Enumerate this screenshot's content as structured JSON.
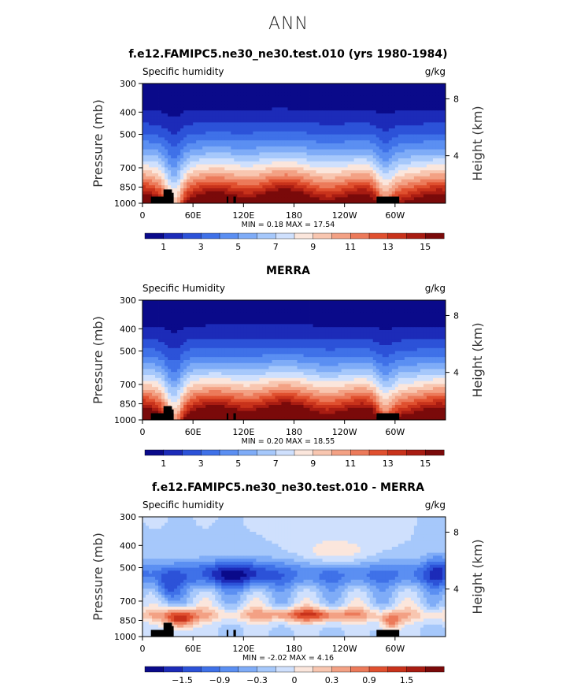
{
  "figure_title": "ANN",
  "chart_data": [
    {
      "type": "heatmap",
      "title": "f.e12.FAMIPC5.ne30_ne30.test.010 (yrs 1980-1984)",
      "variable_label": "Specific humidity",
      "units_label": "g/kg",
      "ylabel": "Pressure (mb)",
      "ylabel_right": "Height (km)",
      "x_ticks": [
        "0",
        "60E",
        "120E",
        "180",
        "120W",
        "60W"
      ],
      "y_ticks": [
        "300",
        "400",
        "500",
        "700",
        "850",
        "1000"
      ],
      "y_ticks_right": [
        "8",
        "4"
      ],
      "stats_label": "MIN =    0.18   MAX =   17.54",
      "min": 0.18,
      "max": 17.54,
      "colorbar": {
        "levels": [
          1,
          3,
          5,
          7,
          9,
          11,
          13,
          15
        ],
        "labels": [
          "1",
          "3",
          "5",
          "7",
          "9",
          "11",
          "13",
          "15"
        ],
        "colors": [
          "#0a0a8a",
          "#1c2bb8",
          "#2c52d8",
          "#3f71e8",
          "#5b8ff2",
          "#7facf7",
          "#a6c8fb",
          "#cfe0fd",
          "#fbe6dc",
          "#f8c6b0",
          "#f3a184",
          "#ec7a5a",
          "#e0502f",
          "#c8321b",
          "#a81c12",
          "#7a0a0a"
        ]
      }
    },
    {
      "type": "heatmap",
      "title": "MERRA",
      "variable_label": "Specific Humidity",
      "units_label": "g/kg",
      "ylabel": "Pressure (mb)",
      "ylabel_right": "Height (km)",
      "x_ticks": [
        "0",
        "60E",
        "120E",
        "180",
        "120W",
        "60W"
      ],
      "y_ticks": [
        "300",
        "400",
        "500",
        "700",
        "850",
        "1000"
      ],
      "y_ticks_right": [
        "8",
        "4"
      ],
      "stats_label": "MIN =    0.20   MAX =   18.55",
      "min": 0.2,
      "max": 18.55,
      "colorbar": {
        "levels": [
          1,
          3,
          5,
          7,
          9,
          11,
          13,
          15
        ],
        "labels": [
          "1",
          "3",
          "5",
          "7",
          "9",
          "11",
          "13",
          "15"
        ],
        "colors": [
          "#0a0a8a",
          "#1c2bb8",
          "#2c52d8",
          "#3f71e8",
          "#5b8ff2",
          "#7facf7",
          "#a6c8fb",
          "#cfe0fd",
          "#fbe6dc",
          "#f8c6b0",
          "#f3a184",
          "#ec7a5a",
          "#e0502f",
          "#c8321b",
          "#a81c12",
          "#7a0a0a"
        ]
      }
    },
    {
      "type": "heatmap",
      "title": "f.e12.FAMIPC5.ne30_ne30.test.010 - MERRA",
      "variable_label": "Specific humidity",
      "units_label": "g/kg",
      "ylabel": "Pressure (mb)",
      "ylabel_right": "Height (km)",
      "x_ticks": [
        "0",
        "60E",
        "120E",
        "180",
        "120W",
        "60W"
      ],
      "y_ticks": [
        "300",
        "400",
        "500",
        "700",
        "850",
        "1000"
      ],
      "y_ticks_right": [
        "8",
        "4"
      ],
      "stats_label": "MIN =   -2.02   MAX =    4.16",
      "min": -2.02,
      "max": 4.16,
      "colorbar": {
        "levels": [
          -1.5,
          -0.9,
          -0.3,
          0,
          0.3,
          0.9,
          1.5
        ],
        "labels": [
          "−1.5",
          "−0.9",
          "−0.3",
          "0",
          "0.3",
          "0.9",
          "1.5"
        ],
        "colors": [
          "#0a0a8a",
          "#1c2bb8",
          "#2c52d8",
          "#3f71e8",
          "#5b8ff2",
          "#7facf7",
          "#a6c8fb",
          "#cfe0fd",
          "#fbe6dc",
          "#f8c6b0",
          "#f3a184",
          "#ec7a5a",
          "#e0502f",
          "#c8321b",
          "#a81c12",
          "#7a0a0a"
        ]
      }
    }
  ]
}
